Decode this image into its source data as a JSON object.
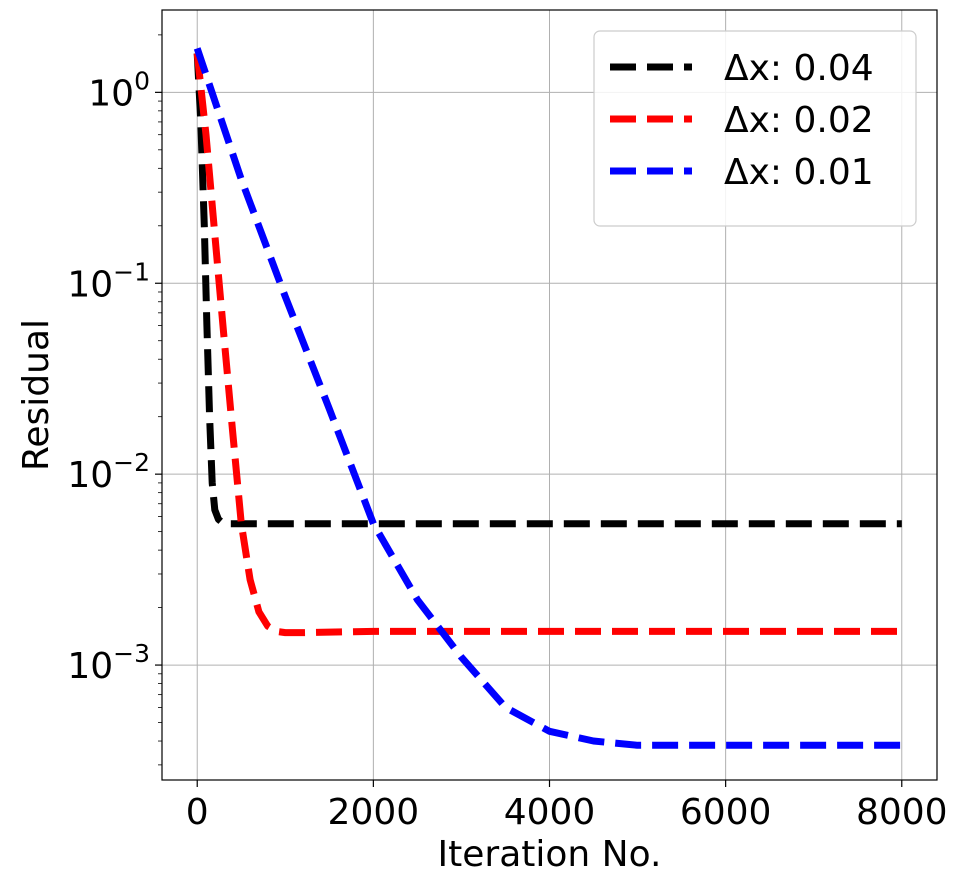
{
  "chart_data": {
    "type": "line",
    "title": "",
    "xlabel": "Iteration No.",
    "ylabel": "Residual",
    "yscale": "log",
    "xlim": [
      -400,
      8400
    ],
    "ylim": [
      0.00025,
      2.7
    ],
    "x_ticks": [
      {
        "value": 0,
        "label": "0"
      },
      {
        "value": 2000,
        "label": "2000"
      },
      {
        "value": 4000,
        "label": "4000"
      },
      {
        "value": 6000,
        "label": "6000"
      },
      {
        "value": 8000,
        "label": "8000"
      }
    ],
    "y_ticks": [
      {
        "value": 1,
        "base": "10",
        "exp": "0"
      },
      {
        "value": 0.1,
        "base": "10",
        "exp": "−1"
      },
      {
        "value": 0.01,
        "base": "10",
        "exp": "−2"
      },
      {
        "value": 0.001,
        "base": "10",
        "exp": "−3"
      }
    ],
    "grid": true,
    "legend_position": "top-right",
    "series": [
      {
        "name": "Δx: 0.04",
        "color": "#000000",
        "line_style": "dashed",
        "x": [
          0,
          40,
          80,
          110,
          140,
          170,
          200,
          240,
          300,
          400,
          600,
          1000,
          2000,
          4000,
          6000,
          8000
        ],
        "y": [
          1.6,
          0.7,
          0.2,
          0.06,
          0.02,
          0.009,
          0.0065,
          0.0058,
          0.0055,
          0.0055,
          0.0055,
          0.0055,
          0.0055,
          0.0055,
          0.0055,
          0.0055
        ]
      },
      {
        "name": "Δx: 0.02",
        "color": "#ff0000",
        "line_style": "dashed",
        "x": [
          0,
          100,
          200,
          300,
          400,
          500,
          600,
          700,
          800,
          900,
          1000,
          1200,
          2000,
          4000,
          6000,
          8000
        ],
        "y": [
          1.6,
          0.6,
          0.18,
          0.055,
          0.017,
          0.0055,
          0.0028,
          0.0019,
          0.0016,
          0.0015,
          0.00148,
          0.00148,
          0.0015,
          0.0015,
          0.0015,
          0.0015
        ]
      },
      {
        "name": "Δx: 0.01",
        "color": "#0000ff",
        "line_style": "dashed",
        "x": [
          0,
          500,
          1000,
          1500,
          2000,
          2500,
          3000,
          3500,
          4000,
          4500,
          5000,
          6000,
          7000,
          8000
        ],
        "y": [
          1.7,
          0.35,
          0.085,
          0.022,
          0.0055,
          0.0022,
          0.0011,
          0.0006,
          0.00045,
          0.0004,
          0.00038,
          0.00038,
          0.00038,
          0.00038
        ]
      }
    ]
  }
}
